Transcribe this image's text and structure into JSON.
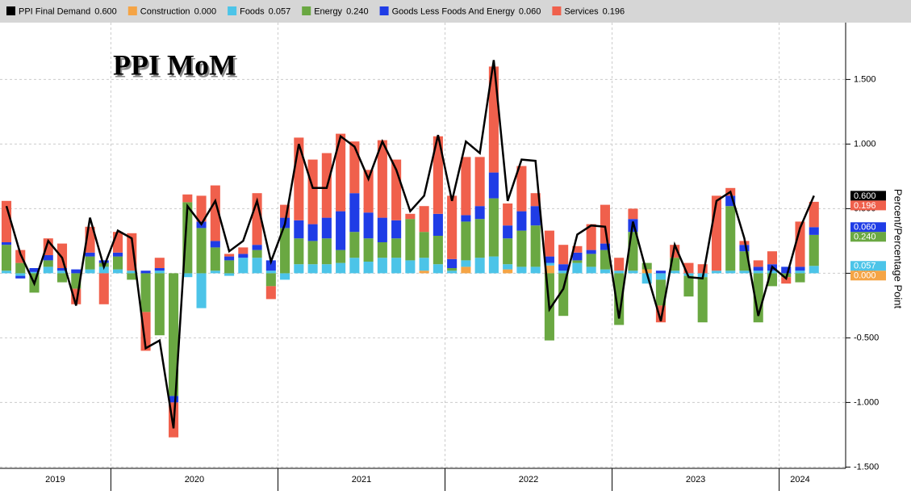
{
  "chart_data": {
    "type": "stacked_bar_line",
    "title": "PPI MoM",
    "y_axis_label": "Percent/Percentage Point",
    "categories": [
      null,
      null,
      null,
      null,
      null,
      null,
      null,
      null,
      null,
      null,
      null,
      null,
      null,
      null,
      null,
      null,
      null,
      null,
      null,
      null,
      null,
      null,
      null,
      null,
      null,
      null,
      null,
      null,
      null,
      null,
      null,
      null,
      null,
      null,
      null,
      null,
      null,
      null,
      null,
      null,
      null,
      null,
      null,
      null,
      null,
      null,
      null,
      null,
      null,
      null,
      null,
      null,
      null,
      null,
      null,
      null,
      null,
      null,
      null
    ],
    "xgroups": [
      {
        "label": "2019",
        "count": 8
      },
      {
        "label": "2020",
        "count": 12
      },
      {
        "label": "2021",
        "count": 12
      },
      {
        "label": "2022",
        "count": 12
      },
      {
        "label": "2023",
        "count": 12
      },
      {
        "label": "2024",
        "count": 3
      }
    ],
    "ylim": [
      -1.51,
      1.94
    ],
    "yticks": [
      {
        "value": -1.5,
        "label": "-1.500"
      },
      {
        "value": -1,
        "label": "-1.000"
      },
      {
        "value": -0.5,
        "label": "-0.500"
      },
      {
        "value": 0,
        "label": "0.000"
      },
      {
        "value": 0.5,
        "label": "0.500"
      },
      {
        "value": 1,
        "label": "1.000"
      },
      {
        "value": 1.5,
        "label": "1.500"
      }
    ],
    "grid": true,
    "series": [
      {
        "name": "PPI Final Demand",
        "kind": "line",
        "color": "#000000",
        "last_label": "0.600",
        "values": [
          0.52,
          0.15,
          -0.08,
          0.25,
          0.12,
          -0.25,
          0.43,
          0.05,
          0.33,
          0.27,
          -0.58,
          -0.52,
          -1.2,
          0.52,
          0.38,
          0.56,
          0.17,
          0.25,
          0.56,
          0.09,
          0.38,
          1.0,
          0.66,
          0.66,
          1.06,
          0.98,
          0.73,
          1.02,
          0.8,
          0.48,
          0.6,
          1.07,
          0.56,
          1.02,
          0.93,
          1.65,
          0.56,
          0.88,
          0.87,
          -0.28,
          -0.12,
          0.3,
          0.37,
          0.36,
          -0.35,
          0.4,
          0.0,
          -0.37,
          0.22,
          -0.03,
          -0.04,
          0.56,
          0.63,
          0.27,
          -0.33,
          0.05,
          -0.04,
          0.35,
          0.6
        ]
      },
      {
        "name": "Construction",
        "kind": "bar",
        "color": "#f5a445",
        "last_label": "0.000",
        "values": [
          0,
          0,
          0,
          0,
          0,
          0,
          0,
          0,
          0,
          0,
          0,
          0,
          0,
          0,
          0,
          0,
          0,
          0,
          0,
          0,
          0,
          0,
          0,
          0,
          0,
          0,
          0,
          0,
          0,
          0,
          0.02,
          0,
          0,
          0.05,
          0,
          0,
          0.03,
          0,
          0,
          0.06,
          0,
          0,
          0,
          0,
          0,
          0,
          0.03,
          0,
          0,
          0,
          0,
          0,
          0,
          0,
          0,
          0,
          0,
          0,
          0
        ]
      },
      {
        "name": "Foods",
        "kind": "bar",
        "color": "#4cc4e8",
        "last_label": "0.057",
        "values": [
          0.02,
          -0.02,
          0.01,
          0.05,
          0.02,
          0,
          0.03,
          0.05,
          0.03,
          0.02,
          0,
          0.02,
          0,
          -0.03,
          -0.27,
          0.02,
          -0.02,
          0.12,
          0.12,
          0.02,
          -0.05,
          0.07,
          0.07,
          0.07,
          0.08,
          0.12,
          0.09,
          0.12,
          0.12,
          0.1,
          0.1,
          0.07,
          0.02,
          0.05,
          0.12,
          0.13,
          0.04,
          0.05,
          0.05,
          0.02,
          0.02,
          0.08,
          0.05,
          0.03,
          0.02,
          0.02,
          -0.08,
          -0.05,
          0.02,
          -0.02,
          -0.03,
          0.02,
          0.02,
          0.02,
          0.02,
          0.02,
          0,
          0.02,
          0.057
        ]
      },
      {
        "name": "Energy",
        "kind": "bar",
        "color": "#6aa842",
        "last_label": "0.240",
        "values": [
          0.2,
          0.08,
          -0.15,
          0.05,
          -0.07,
          -0.12,
          0.1,
          0.03,
          0.1,
          -0.05,
          -0.3,
          -0.48,
          -0.95,
          0.55,
          0.35,
          0.18,
          0.1,
          0,
          0.06,
          -0.1,
          0.35,
          0.2,
          0.18,
          0.2,
          0.1,
          0.2,
          0.18,
          0.12,
          0.15,
          0.32,
          0.2,
          0.22,
          0.02,
          0.3,
          0.3,
          0.45,
          0.2,
          0.28,
          0.32,
          -0.52,
          -0.33,
          0.02,
          0.1,
          0.15,
          -0.4,
          0.3,
          0.05,
          -0.2,
          0.1,
          -0.16,
          -0.35,
          0,
          0.5,
          0.15,
          -0.38,
          -0.1,
          -0.03,
          -0.07,
          0.24
        ]
      },
      {
        "name": "Goods Less Foods And Energy",
        "kind": "bar",
        "color": "#1f3ce6",
        "last_label": "0.060",
        "values": [
          0.02,
          -0.02,
          0.03,
          0.04,
          0.02,
          0.03,
          0.03,
          0.02,
          0.03,
          0,
          0.02,
          0.02,
          -0.05,
          0,
          0.05,
          0.05,
          0.03,
          0.03,
          0.04,
          0.08,
          0.08,
          0.14,
          0.13,
          0.16,
          0.3,
          0.3,
          0.2,
          0.19,
          0.14,
          0,
          0,
          0.17,
          0.07,
          0.05,
          0.1,
          0.2,
          0.1,
          0.15,
          0.15,
          0.05,
          0.05,
          0.06,
          0.03,
          0.05,
          0,
          0.1,
          0,
          0.02,
          0,
          0,
          0,
          0,
          0.08,
          0.05,
          0.03,
          0.05,
          0.05,
          0.03,
          0.06
        ]
      },
      {
        "name": "Services",
        "kind": "bar",
        "color": "#f0604c",
        "last_label": "0.196",
        "values": [
          0.32,
          0.1,
          0,
          0.13,
          0.19,
          -0.12,
          0.2,
          -0.24,
          0.16,
          0.29,
          -0.3,
          0.08,
          -0.27,
          0.06,
          0.2,
          0.43,
          0.02,
          0.05,
          0.4,
          -0.1,
          0.1,
          0.64,
          0.5,
          0.5,
          0.6,
          0.4,
          0.33,
          0.6,
          0.47,
          0.04,
          0.2,
          0.6,
          0.49,
          0.45,
          0.38,
          0.82,
          0.17,
          0.35,
          0.1,
          0.2,
          0.15,
          0.05,
          0.2,
          0.3,
          0.1,
          0.08,
          0,
          -0.13,
          0.1,
          0.08,
          0.07,
          0.58,
          0.06,
          0.03,
          0.05,
          0.1,
          -0.05,
          0.35,
          0.196
        ]
      }
    ]
  }
}
